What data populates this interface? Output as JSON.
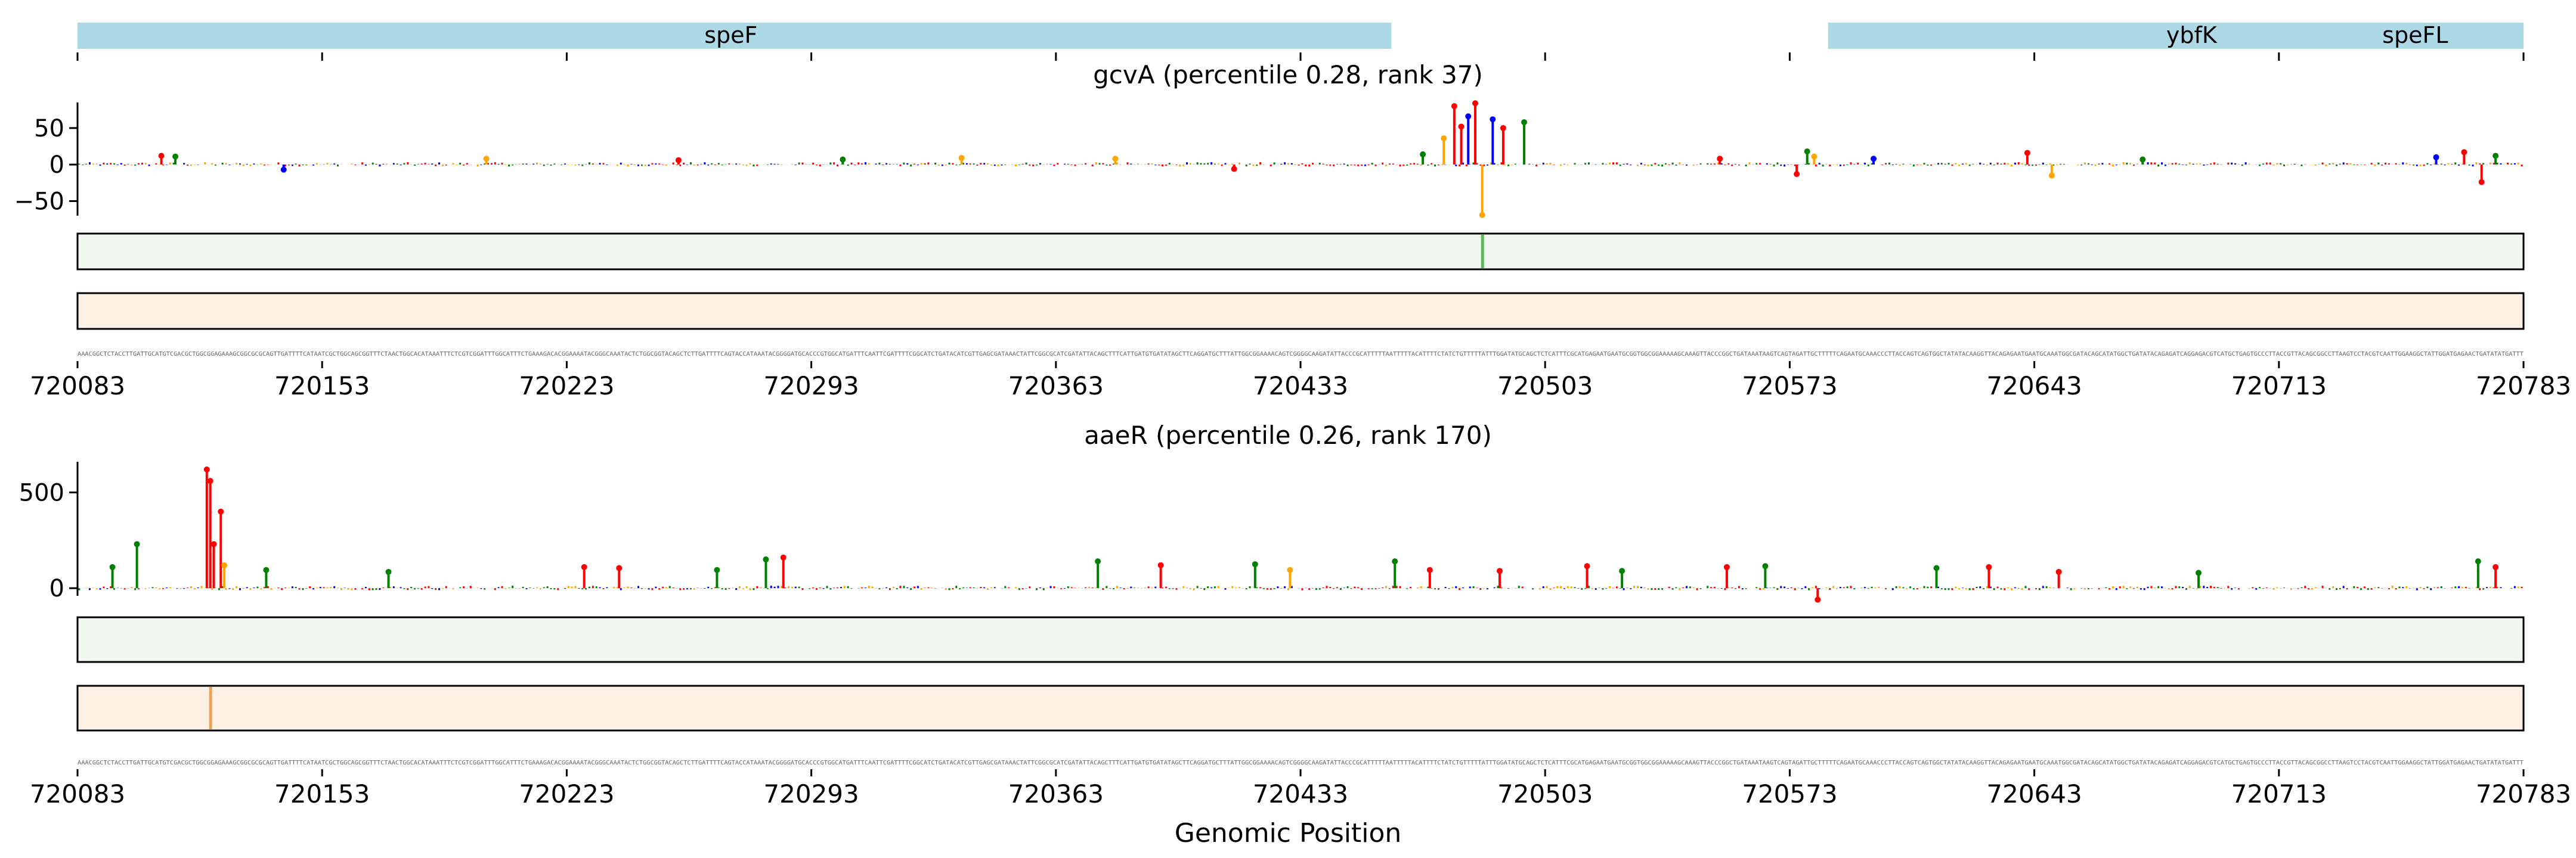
{
  "chart_data": {
    "type": "genome-track",
    "xlabel": "Genomic Position",
    "xlim": [
      720083,
      720783
    ],
    "xticks": [
      720083,
      720153,
      720223,
      720293,
      720363,
      720433,
      720503,
      720573,
      720643,
      720713,
      720783
    ],
    "gene_annotations": [
      {
        "name": "speF",
        "start": 720083,
        "end": 720459
      },
      {
        "name": "ybfK",
        "start": 720584,
        "end": 720783
      },
      {
        "name": "speFL",
        "start": 720584,
        "end": 720783
      }
    ],
    "annotation_color": "#add8e6",
    "base_colors": {
      "A": "#008000",
      "C": "#0000ff",
      "G": "#ffa500",
      "T": "#ff0000"
    },
    "sequence": "AAACGGCTCTACCTTGATTGCATGTCGACGCTGGCGGAGAAAGCGGCGCGCAGTTGATTTTCATAATCGCTGGCAGCGGTTTCTAACTGGCACATAAATTTCTCGTCGGATTTGGCATTTCTGAAAGACACGGAAAATACGGGCAAATACTCTGGCGGTACAGCTCTTGATTTTCAGTACCATAAATACGGGGATGCACCCGTGGCATGATTTCAATTCGATTTTCGGCATCTGATACATCGTTGAGCGATAAACTATTCGGCGCATCGATATTACAGCTTTCATTGATGTGATATAGCTTCAGGATGCTTTATTGGCGGAAAACAGTCGGGGCAAGATATTACCCGCATTTTTAATTTTTACATTTTCTATCTGTTTTTATTTGGATATGCAGCTCTCATTTCGCATGAGAATGAATGCGGTGGCGGAAAAAGCAAAGTTACCCGGCTGATAAATAAGTCAGTAGATTGCTTTTTCAGAATGCAAACCCTTACCAGTCAGTGGCTATATACAAGGTTACAGAGAATGAATGCAAATGGCGATACAGCATATGGCTGATATACAGAGATCAGGAGACGTCATGCTGAGTGCCCTTACCGTTACAGCGGCCTTAAGTCCTACGTCAATTGGAAGGCTATTGGATGAGAACTGATATATGATTT",
    "sequence_length": 700,
    "panels": [
      {
        "title": "gcvA (percentile 0.28, rank 37)",
        "ylim": [
          -70,
          85
        ],
        "yticks": [
          50,
          0,
          -50
        ],
        "attribution": [
          {
            "x": 720107,
            "value": 12,
            "base": "T"
          },
          {
            "x": 720111,
            "value": 11,
            "base": "A"
          },
          {
            "x": 720142,
            "value": -7,
            "base": "C"
          },
          {
            "x": 720200,
            "value": 8,
            "base": "G"
          },
          {
            "x": 720255,
            "value": 6,
            "base": "T"
          },
          {
            "x": 720302,
            "value": 7,
            "base": "A"
          },
          {
            "x": 720336,
            "value": 9,
            "base": "G"
          },
          {
            "x": 720380,
            "value": 8,
            "base": "G"
          },
          {
            "x": 720414,
            "value": -6,
            "base": "T"
          },
          {
            "x": 720468,
            "value": 14,
            "base": "A"
          },
          {
            "x": 720474,
            "value": 36,
            "base": "G"
          },
          {
            "x": 720477,
            "value": 80,
            "base": "T"
          },
          {
            "x": 720479,
            "value": 52,
            "base": "T"
          },
          {
            "x": 720481,
            "value": 66,
            "base": "C"
          },
          {
            "x": 720483,
            "value": 84,
            "base": "T"
          },
          {
            "x": 720485,
            "value": -69,
            "base": "G"
          },
          {
            "x": 720488,
            "value": 62,
            "base": "C"
          },
          {
            "x": 720491,
            "value": 50,
            "base": "T"
          },
          {
            "x": 720497,
            "value": 58,
            "base": "A"
          },
          {
            "x": 720553,
            "value": 8,
            "base": "T"
          },
          {
            "x": 720575,
            "value": -13,
            "base": "T"
          },
          {
            "x": 720578,
            "value": 18,
            "base": "A"
          },
          {
            "x": 720580,
            "value": 11,
            "base": "G"
          },
          {
            "x": 720597,
            "value": 8,
            "base": "C"
          },
          {
            "x": 720641,
            "value": 16,
            "base": "T"
          },
          {
            "x": 720648,
            "value": -15,
            "base": "G"
          },
          {
            "x": 720674,
            "value": 7,
            "base": "A"
          },
          {
            "x": 720758,
            "value": 10,
            "base": "C"
          },
          {
            "x": 720766,
            "value": 17,
            "base": "T"
          },
          {
            "x": 720771,
            "value": -24,
            "base": "T"
          },
          {
            "x": 720775,
            "value": 12,
            "base": "A"
          }
        ],
        "strip_green_hotspots": [
          720485
        ],
        "strip_orange_hotspots": []
      },
      {
        "title": "aaeR (percentile 0.26, rank 170)",
        "ylim": [
          -40,
          660
        ],
        "yticks": [
          500,
          0
        ],
        "attribution": [
          {
            "x": 720093,
            "value": 110,
            "base": "A"
          },
          {
            "x": 720100,
            "value": 230,
            "base": "A"
          },
          {
            "x": 720120,
            "value": 620,
            "base": "T"
          },
          {
            "x": 720121,
            "value": 560,
            "base": "T"
          },
          {
            "x": 720122,
            "value": 230,
            "base": "T"
          },
          {
            "x": 720124,
            "value": 400,
            "base": "T"
          },
          {
            "x": 720125,
            "value": 120,
            "base": "G"
          },
          {
            "x": 720137,
            "value": 95,
            "base": "A"
          },
          {
            "x": 720172,
            "value": 85,
            "base": "A"
          },
          {
            "x": 720228,
            "value": 110,
            "base": "T"
          },
          {
            "x": 720238,
            "value": 105,
            "base": "T"
          },
          {
            "x": 720266,
            "value": 95,
            "base": "A"
          },
          {
            "x": 720280,
            "value": 150,
            "base": "A"
          },
          {
            "x": 720285,
            "value": 160,
            "base": "T"
          },
          {
            "x": 720375,
            "value": 140,
            "base": "A"
          },
          {
            "x": 720393,
            "value": 120,
            "base": "T"
          },
          {
            "x": 720420,
            "value": 125,
            "base": "A"
          },
          {
            "x": 720430,
            "value": 95,
            "base": "G"
          },
          {
            "x": 720460,
            "value": 140,
            "base": "A"
          },
          {
            "x": 720470,
            "value": 95,
            "base": "T"
          },
          {
            "x": 720490,
            "value": 90,
            "base": "T"
          },
          {
            "x": 720515,
            "value": 115,
            "base": "T"
          },
          {
            "x": 720525,
            "value": 90,
            "base": "A"
          },
          {
            "x": 720555,
            "value": 110,
            "base": "T"
          },
          {
            "x": 720566,
            "value": 115,
            "base": "A"
          },
          {
            "x": 720581,
            "value": -60,
            "base": "T"
          },
          {
            "x": 720615,
            "value": 105,
            "base": "A"
          },
          {
            "x": 720630,
            "value": 110,
            "base": "T"
          },
          {
            "x": 720650,
            "value": 85,
            "base": "T"
          },
          {
            "x": 720690,
            "value": 80,
            "base": "A"
          },
          {
            "x": 720770,
            "value": 140,
            "base": "A"
          },
          {
            "x": 720775,
            "value": 110,
            "base": "T"
          }
        ],
        "strip_green_hotspots": [],
        "strip_orange_hotspots": [
          720121
        ]
      }
    ]
  }
}
